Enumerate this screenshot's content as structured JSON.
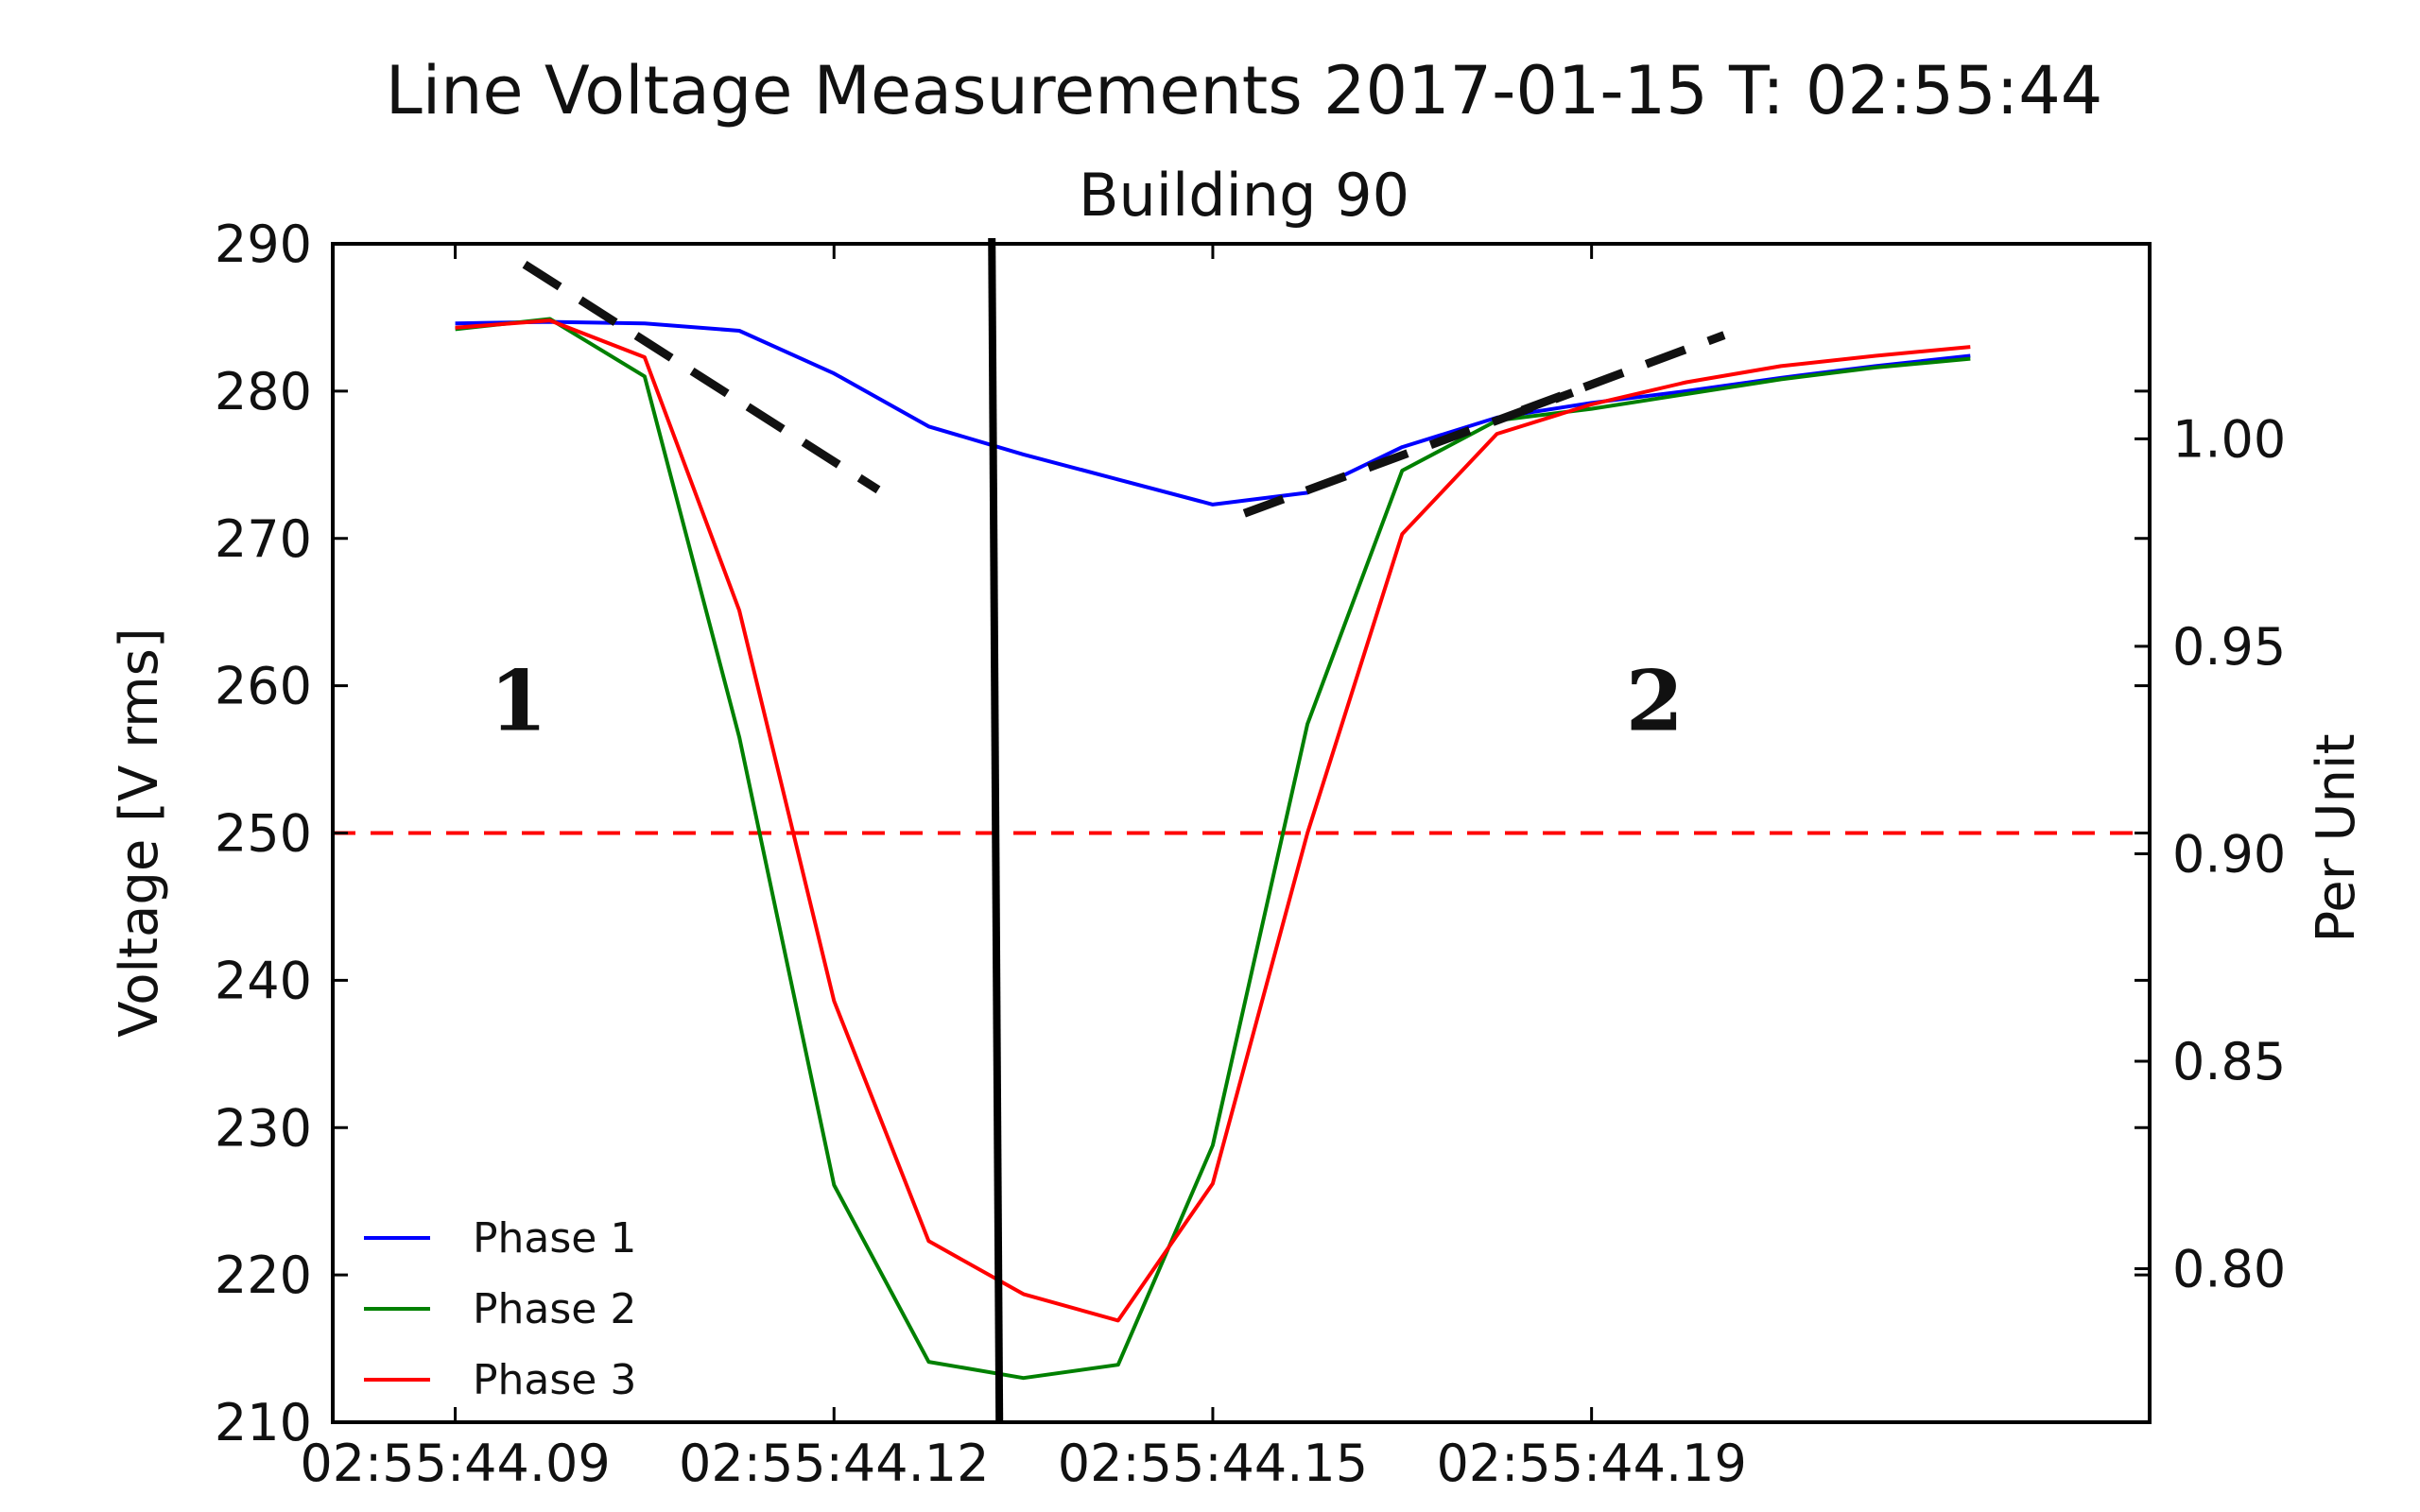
{
  "chart_data": {
    "type": "line",
    "title": "Line Voltage Measurements 2017-01-15 T: 02:55:44",
    "subtitle": "Building 90",
    "ylabel": "Voltage [V rms]",
    "y2label": "Per Unit",
    "ylim": [
      210,
      290
    ],
    "y2lim": [
      0.763,
      1.047
    ],
    "yticks": [
      210,
      220,
      230,
      240,
      250,
      260,
      270,
      280,
      290
    ],
    "y2ticks": [
      0.8,
      0.85,
      0.9,
      0.95,
      1.0
    ],
    "y2ticklabels": [
      "0.80",
      "0.85",
      "0.90",
      "0.95",
      "1.00"
    ],
    "xlim": [
      0.0853,
      0.2292
    ],
    "xticks": [
      0.095,
      0.125,
      0.155,
      0.185
    ],
    "xticklabels": [
      "02:55:44.09",
      "02:55:44.12",
      "02:55:44.15",
      "02:55:44.19"
    ],
    "x": [
      0.095,
      0.1025,
      0.11,
      0.1175,
      0.125,
      0.1325,
      0.14,
      0.1475,
      0.155,
      0.1625,
      0.17,
      0.1775,
      0.185,
      0.1925,
      0.2,
      0.2075,
      0.215
    ],
    "series": [
      {
        "name": "Phase 1",
        "color": "#0000ff",
        "values": [
          284.6,
          284.7,
          284.6,
          284.1,
          281.2,
          277.6,
          275.7,
          274.0,
          272.3,
          273.1,
          276.2,
          278.2,
          279.2,
          280.0,
          280.9,
          281.7,
          282.4
        ]
      },
      {
        "name": "Phase 2",
        "color": "#008000",
        "values": [
          284.2,
          284.9,
          281.0,
          256.5,
          226.1,
          214.1,
          213.0,
          213.9,
          228.8,
          257.4,
          274.6,
          278.0,
          278.8,
          279.8,
          280.8,
          281.6,
          282.2
        ]
      },
      {
        "name": "Phase 3",
        "color": "#ff0000",
        "values": [
          284.3,
          284.8,
          282.3,
          265.1,
          238.6,
          222.3,
          218.7,
          216.9,
          226.2,
          250.0,
          270.3,
          277.1,
          279.1,
          280.6,
          281.7,
          282.4,
          283.0
        ]
      }
    ],
    "threshold": {
      "y": 250,
      "color": "#ff0000",
      "style": "dashed"
    },
    "vertical_marker": {
      "x": 0.1375,
      "color": "#000000"
    },
    "trend_lines": [
      {
        "x": [
          0.1005,
          0.1285
        ],
        "y": [
          288.6,
          273.3
        ]
      },
      {
        "x": [
          0.1575,
          0.1835
        ],
        "y": [
          271.7,
          279.9
        ]
      },
      {
        "x": [
          0.1795,
          0.1955
        ],
        "y": [
          278.7,
          283.8
        ]
      }
    ],
    "annotations": [
      {
        "text": "1",
        "x": 0.1,
        "y": 257
      },
      {
        "text": "2",
        "x": 0.19,
        "y": 257
      }
    ],
    "legend": "lower-left",
    "grid": false
  }
}
